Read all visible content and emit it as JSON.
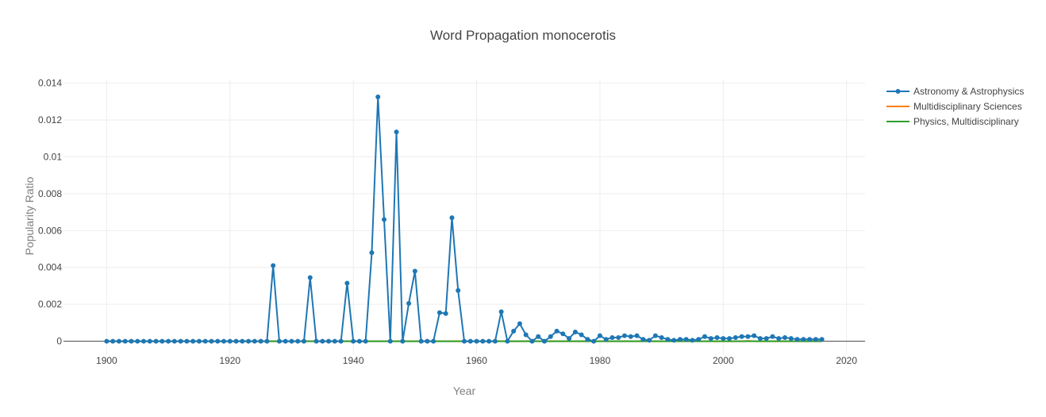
{
  "chart_data": {
    "type": "line",
    "title": "Word Propagation monocerotis",
    "xlabel": "Year",
    "ylabel": "Popularity Ratio",
    "xlim": [
      1893,
      2023
    ],
    "ylim": [
      -0.00075,
      0.0142
    ],
    "x_ticks": [
      1900,
      1920,
      1940,
      1960,
      1980,
      2000,
      2020
    ],
    "y_ticks": [
      0,
      0.002,
      0.004,
      0.006,
      0.008,
      0.01,
      0.012,
      0.014
    ],
    "y_tick_labels": [
      "0",
      "0.002",
      "0.004",
      "0.006",
      "0.008",
      "0.01",
      "0.012",
      "0.014"
    ],
    "grid": true,
    "legend_position": "top-right",
    "series": [
      {
        "name": "Astronomy & Astrophysics",
        "color": "#1f77b4",
        "markers": true,
        "x": [
          1900,
          1901,
          1902,
          1903,
          1904,
          1905,
          1906,
          1907,
          1908,
          1909,
          1910,
          1911,
          1912,
          1913,
          1914,
          1915,
          1916,
          1917,
          1918,
          1919,
          1920,
          1921,
          1922,
          1923,
          1924,
          1925,
          1926,
          1927,
          1928,
          1929,
          1930,
          1931,
          1932,
          1933,
          1934,
          1935,
          1936,
          1937,
          1938,
          1939,
          1940,
          1941,
          1942,
          1943,
          1944,
          1945,
          1946,
          1947,
          1948,
          1949,
          1950,
          1951,
          1952,
          1953,
          1954,
          1955,
          1956,
          1957,
          1958,
          1959,
          1960,
          1961,
          1962,
          1963,
          1964,
          1965,
          1966,
          1967,
          1968,
          1969,
          1970,
          1971,
          1972,
          1973,
          1974,
          1975,
          1976,
          1977,
          1978,
          1979,
          1980,
          1981,
          1982,
          1983,
          1984,
          1985,
          1986,
          1987,
          1988,
          1989,
          1990,
          1991,
          1992,
          1993,
          1994,
          1995,
          1996,
          1997,
          1998,
          1999,
          2000,
          2001,
          2002,
          2003,
          2004,
          2005,
          2006,
          2007,
          2008,
          2009,
          2010,
          2011,
          2012,
          2013,
          2014,
          2015,
          2016
        ],
        "y": [
          0,
          0,
          0,
          0,
          0,
          0,
          0,
          0,
          0,
          0,
          0,
          0,
          0,
          0,
          0,
          0,
          0,
          0,
          0,
          0,
          0,
          0,
          0,
          0,
          0,
          0,
          0,
          0.0041,
          0,
          0,
          0,
          0,
          0,
          0.00345,
          0,
          0,
          0,
          0,
          0,
          0.00315,
          0,
          0,
          0,
          0.0048,
          0.01325,
          0.0066,
          0,
          0.01135,
          0,
          0.00205,
          0.0038,
          0,
          0,
          0,
          0.00155,
          0.0015,
          0.0067,
          0.00275,
          0,
          0,
          0,
          0,
          0,
          0,
          0.0016,
          0,
          0.00055,
          0.00095,
          0.00035,
          0,
          0.00025,
          0,
          0.00025,
          0.00055,
          0.0004,
          0.00015,
          0.0005,
          0.00035,
          0.0001,
          0,
          0.0003,
          0.0001,
          0.0002,
          0.0002,
          0.0003,
          0.00025,
          0.0003,
          0.0001,
          5e-05,
          0.0003,
          0.0002,
          0.0001,
          5e-05,
          0.0001,
          0.0001,
          5e-05,
          0.0001,
          0.00025,
          0.00015,
          0.0002,
          0.00015,
          0.00015,
          0.0002,
          0.00025,
          0.00025,
          0.0003,
          0.00015,
          0.00015,
          0.00025,
          0.00015,
          0.0002,
          0.00015,
          0.0001,
          0.0001,
          0.0001,
          0.0001,
          0.0001
        ]
      },
      {
        "name": "Multidisciplinary Sciences",
        "color": "#ff7f0e",
        "markers": false,
        "x": [
          1900,
          2000,
          2003,
          2004,
          2005,
          2006,
          2016
        ],
        "y": [
          0,
          0,
          0,
          2e-05,
          0,
          0,
          0
        ]
      },
      {
        "name": "Physics, Multidisciplinary",
        "color": "#2ca02c",
        "markers": false,
        "x": [
          1900,
          2016
        ],
        "y": [
          0,
          0
        ]
      }
    ]
  }
}
